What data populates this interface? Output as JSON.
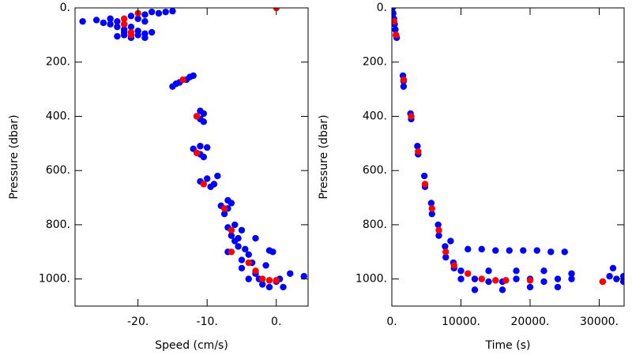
{
  "chart_data": [
    {
      "type": "scatter",
      "xlabel": "Speed (cm/s)",
      "ylabel": "Pressure (dbar)",
      "xlim": [
        -29.1,
        4.6
      ],
      "ylim": [
        0,
        1100
      ],
      "y_inverted": true,
      "xticks": [
        {
          "value": -20,
          "label": "-20."
        },
        {
          "value": -10,
          "label": "-10."
        },
        {
          "value": 0,
          "label": "0."
        }
      ],
      "yticks": [
        {
          "value": 0,
          "label": "0."
        },
        {
          "value": 200,
          "label": "200."
        },
        {
          "value": 400,
          "label": "400."
        },
        {
          "value": 600,
          "label": "600."
        },
        {
          "value": 800,
          "label": "800."
        },
        {
          "value": 1000,
          "label": "1000."
        }
      ],
      "series": [
        {
          "color": "#0000ff",
          "x": [
            -28,
            -26,
            -24,
            -23,
            -22,
            -21,
            -22,
            -20,
            -21,
            -22,
            -23,
            -24,
            -25,
            -19,
            -20,
            -18,
            -16,
            -15,
            -17,
            -19,
            -21,
            -20,
            -19,
            -22,
            -23,
            -18,
            -19,
            -15,
            -14.5,
            -14,
            -13,
            -12.5,
            -12,
            -11,
            -10.5,
            -11,
            -10.5,
            -11.5,
            -12,
            -11,
            -10,
            -11,
            -10.5,
            -11,
            -10,
            -9.5,
            -9,
            -8.5,
            -8,
            -7.5,
            -7,
            -6.5,
            -7,
            -7,
            -6,
            -6.5,
            -5,
            -6,
            -5.5,
            -7,
            -5.5,
            -4.5,
            -3,
            -4,
            -5,
            -1,
            -0.5,
            -5,
            -4,
            -3,
            -2,
            -1,
            0,
            0.5,
            -1.5,
            -3.5,
            2,
            4,
            1,
            -2.5
          ],
          "values": [
            50,
            45,
            40,
            50,
            60,
            70,
            90,
            100,
            110,
            80,
            70,
            60,
            55,
            95,
            85,
            15,
            15,
            12,
            20,
            25,
            30,
            40,
            50,
            100,
            105,
            90,
            110,
            290,
            280,
            275,
            265,
            255,
            250,
            380,
            390,
            410,
            420,
            400,
            520,
            510,
            515,
            540,
            550,
            640,
            630,
            660,
            650,
            620,
            730,
            760,
            740,
            720,
            710,
            810,
            800,
            840,
            820,
            860,
            850,
            900,
            880,
            890,
            850,
            910,
            930,
            895,
            900,
            960,
            1000,
            980,
            1020,
            1030,
            1010,
            1000,
            950,
            940,
            980,
            990,
            1030,
            1000
          ]
        },
        {
          "color": "#ff0000",
          "x": [
            -20,
            -22,
            -22,
            -21,
            -21,
            0,
            -13.5,
            -11.5,
            -11.5,
            -10.5,
            -7.5,
            -6.5,
            -6.5,
            -4,
            -3,
            -2,
            -1,
            0
          ],
          "values": [
            20,
            40,
            60,
            90,
            100,
            0,
            265,
            400,
            535,
            650,
            740,
            820,
            900,
            940,
            970,
            1000,
            1005,
            1005
          ]
        }
      ]
    },
    {
      "type": "scatter",
      "xlabel": "Time (s)",
      "ylabel": "Pressure (dbar)",
      "xlim": [
        0,
        33600
      ],
      "ylim": [
        0,
        1100
      ],
      "y_inverted": true,
      "xticks": [
        {
          "value": 0,
          "label": "0."
        },
        {
          "value": 10000,
          "label": "10000."
        },
        {
          "value": 20000,
          "label": "20000."
        },
        {
          "value": 30000,
          "label": "30000."
        }
      ],
      "yticks": [
        {
          "value": 0,
          "label": "0."
        },
        {
          "value": 200,
          "label": "200."
        },
        {
          "value": 400,
          "label": "400."
        },
        {
          "value": 600,
          "label": "600."
        },
        {
          "value": 800,
          "label": "800."
        },
        {
          "value": 1000,
          "label": "1000."
        }
      ],
      "series": [
        {
          "color": "#0000ff",
          "x": [
            100,
            200,
            300,
            400,
            500,
            600,
            700,
            1600,
            1700,
            1700,
            2700,
            2800,
            3700,
            3800,
            4700,
            4800,
            5700,
            5800,
            6700,
            6800,
            7700,
            7800,
            8500,
            8900,
            9000,
            10000,
            11000,
            13000,
            15000,
            17000,
            19000,
            21000,
            23000,
            25000,
            10000,
            12000,
            14000,
            16000,
            18000,
            20000,
            22000,
            24000,
            26000,
            12000,
            16000,
            20000,
            24000,
            14000,
            18000,
            22000,
            26000,
            30500,
            31500,
            32000,
            32500,
            33500,
            33500
          ],
          "values": [
            0,
            20,
            40,
            60,
            80,
            100,
            110,
            250,
            270,
            290,
            390,
            410,
            510,
            540,
            620,
            660,
            720,
            760,
            800,
            840,
            880,
            920,
            860,
            940,
            960,
            970,
            890,
            890,
            895,
            895,
            895,
            895,
            900,
            900,
            1000,
            1000,
            1010,
            1010,
            1000,
            1000,
            1010,
            1000,
            1000,
            1040,
            1040,
            1030,
            1030,
            970,
            970,
            970,
            980,
            1010,
            990,
            960,
            1000,
            1010,
            990
          ]
        },
        {
          "color": "#ff0000",
          "x": [
            300,
            600,
            1700,
            2800,
            3800,
            4800,
            5800,
            6800,
            7800,
            9000,
            11000,
            13000,
            15000,
            16500,
            20000,
            30500
          ],
          "values": [
            50,
            100,
            265,
            400,
            530,
            650,
            740,
            820,
            900,
            950,
            980,
            1000,
            1005,
            1005,
            1005,
            1010
          ]
        }
      ]
    }
  ]
}
